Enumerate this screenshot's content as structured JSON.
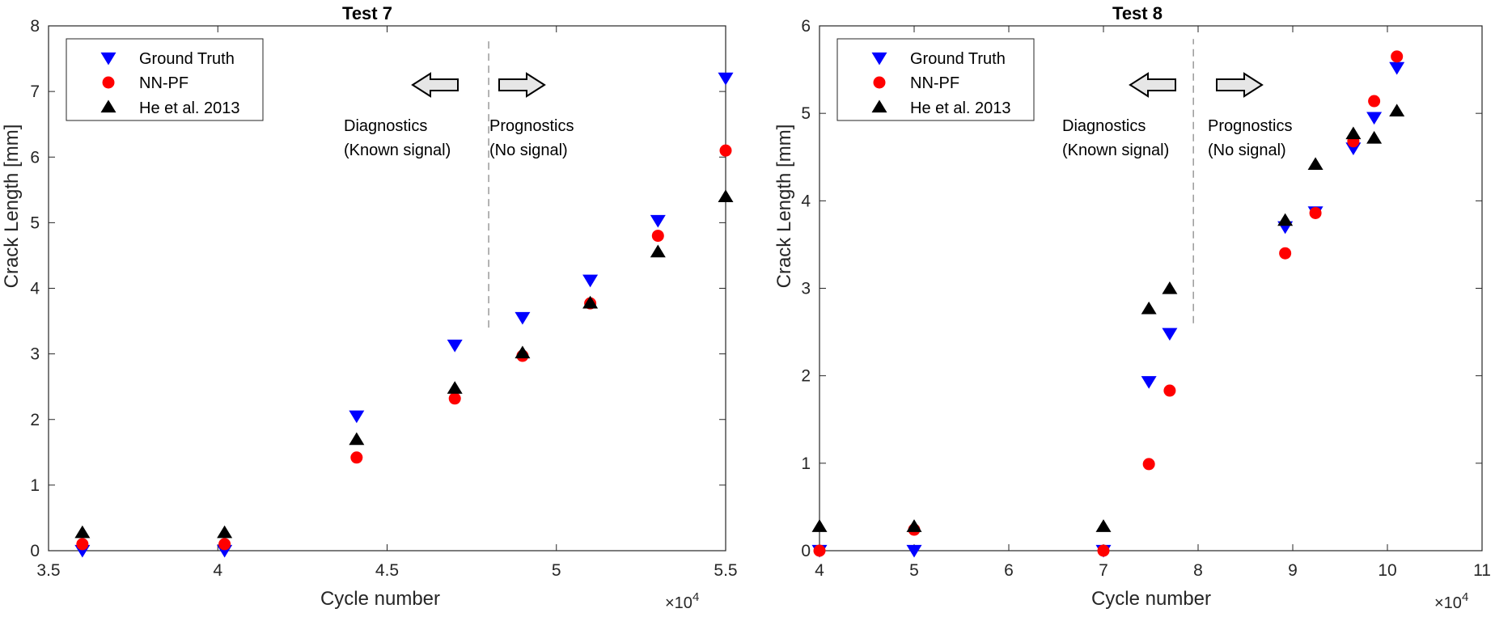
{
  "chart_data": [
    {
      "type": "scatter",
      "title": "Test 7",
      "xlabel": "Cycle number",
      "ylabel": "Crack Length [mm]",
      "x_multiplier": "×10",
      "x_multiplier_exp": "4",
      "xlim": [
        3.5,
        5.5
      ],
      "ylim": [
        0,
        8
      ],
      "xticks": [
        3.5,
        4,
        4.5,
        5,
        5.5
      ],
      "xtick_labels": [
        "3.5",
        "4",
        "4.5",
        "5",
        "5.5"
      ],
      "yticks": [
        0,
        1,
        2,
        3,
        4,
        5,
        6,
        7,
        8
      ],
      "ytick_labels": [
        "0",
        "1",
        "2",
        "3",
        "4",
        "5",
        "6",
        "7",
        "8"
      ],
      "divider_x": 4.8,
      "divider_y": [
        3.4,
        7.8
      ],
      "annotations": {
        "left_line1": "Diagnostics",
        "left_line2": "(Known signal)",
        "right_line1": "Prognostics",
        "right_line2": "(No signal)"
      },
      "legend_position": "top-left",
      "grid": false,
      "series": [
        {
          "name": "Ground Truth",
          "marker": "triangle-down",
          "color": "#0000ff",
          "points": [
            [
              3.6,
              0.0
            ],
            [
              4.02,
              0.0
            ],
            [
              4.41,
              2.05
            ],
            [
              4.7,
              3.13
            ],
            [
              4.9,
              3.55
            ],
            [
              5.1,
              4.12
            ],
            [
              5.3,
              5.03
            ],
            [
              5.5,
              7.2
            ]
          ]
        },
        {
          "name": "NN-PF",
          "marker": "circle",
          "color": "#ff0000",
          "points": [
            [
              3.6,
              0.1
            ],
            [
              4.02,
              0.1
            ],
            [
              4.41,
              1.42
            ],
            [
              4.7,
              2.32
            ],
            [
              4.9,
              2.97
            ],
            [
              5.1,
              3.77
            ],
            [
              5.3,
              4.8
            ],
            [
              5.5,
              6.1
            ]
          ]
        },
        {
          "name": "He et al. 2013",
          "marker": "triangle-up",
          "color": "#000000",
          "points": [
            [
              3.6,
              0.28
            ],
            [
              4.02,
              0.28
            ],
            [
              4.41,
              1.7
            ],
            [
              4.7,
              2.48
            ],
            [
              4.9,
              3.02
            ],
            [
              5.1,
              3.78
            ],
            [
              5.3,
              4.56
            ],
            [
              5.5,
              5.4
            ]
          ]
        }
      ]
    },
    {
      "type": "scatter",
      "title": "Test 8",
      "xlabel": "Cycle number",
      "ylabel": "Crack Length [mm]",
      "x_multiplier": "×10",
      "x_multiplier_exp": "4",
      "xlim": [
        4,
        11
      ],
      "ylim": [
        0,
        6
      ],
      "xticks": [
        4,
        5,
        6,
        7,
        8,
        9,
        10,
        11
      ],
      "xtick_labels": [
        "4",
        "5",
        "6",
        "7",
        "8",
        "9",
        "10",
        "11"
      ],
      "yticks": [
        0,
        1,
        2,
        3,
        4,
        5,
        6
      ],
      "ytick_labels": [
        "0",
        "1",
        "2",
        "3",
        "4",
        "5",
        "6"
      ],
      "divider_x": 7.95,
      "divider_y": [
        2.6,
        5.85
      ],
      "annotations": {
        "left_line1": "Diagnostics",
        "left_line2": "(Known signal)",
        "right_line1": "Prognostics",
        "right_line2": "(No signal)"
      },
      "legend_position": "top-left",
      "grid": false,
      "series": [
        {
          "name": "Ground Truth",
          "marker": "triangle-down",
          "color": "#0000ff",
          "points": [
            [
              4.0,
              0.0
            ],
            [
              5.0,
              0.0
            ],
            [
              7.0,
              0.0
            ],
            [
              7.48,
              1.93
            ],
            [
              7.7,
              2.48
            ],
            [
              8.92,
              3.7
            ],
            [
              9.24,
              3.87
            ],
            [
              9.64,
              4.6
            ],
            [
              9.86,
              4.95
            ],
            [
              10.1,
              5.52
            ]
          ]
        },
        {
          "name": "NN-PF",
          "marker": "circle",
          "color": "#ff0000",
          "points": [
            [
              4.0,
              0.0
            ],
            [
              5.0,
              0.24
            ],
            [
              7.0,
              0.0
            ],
            [
              7.48,
              0.99
            ],
            [
              7.7,
              1.83
            ],
            [
              8.92,
              3.4
            ],
            [
              9.24,
              3.86
            ],
            [
              9.64,
              4.68
            ],
            [
              9.86,
              5.14
            ],
            [
              10.1,
              5.65
            ]
          ]
        },
        {
          "name": "He et al. 2013",
          "marker": "triangle-up",
          "color": "#000000",
          "points": [
            [
              4.0,
              0.28
            ],
            [
              5.0,
              0.28
            ],
            [
              7.0,
              0.28
            ],
            [
              7.48,
              2.77
            ],
            [
              7.7,
              3.0
            ],
            [
              8.92,
              3.78
            ],
            [
              9.24,
              4.42
            ],
            [
              9.64,
              4.77
            ],
            [
              9.86,
              4.72
            ],
            [
              10.1,
              5.03
            ]
          ]
        }
      ]
    }
  ]
}
